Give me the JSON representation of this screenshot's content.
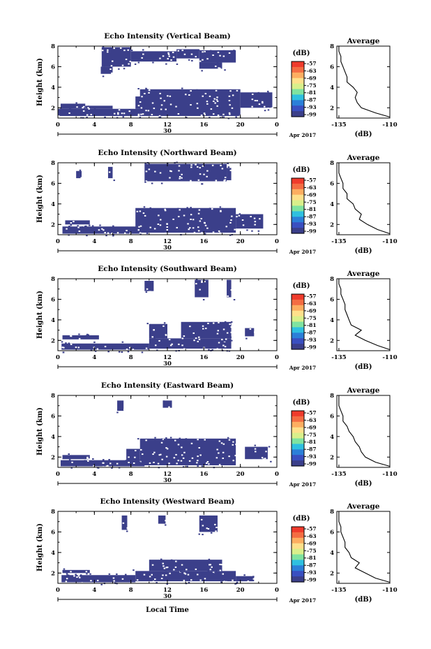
{
  "colorbar": {
    "unit": "(dB)",
    "ticks": [
      "-57",
      "-63",
      "-69",
      "-75",
      "-81",
      "-87",
      "-93",
      "-99"
    ],
    "colors": [
      "#ef3b2c",
      "#f46d43",
      "#fdae61",
      "#fee08b",
      "#d9ef8b",
      "#7fe3a0",
      "#2fc0e0",
      "#2c7fd8",
      "#3a4fc0",
      "#3b3f8a"
    ]
  },
  "shared": {
    "height_axis_label": "Height (km)",
    "date_label": "Apr 2017",
    "day_label": "30",
    "xlabel": "Local Time",
    "profile_title": "Average",
    "profile_xlabel": "(dB)",
    "echo_color": "#3b3f8a"
  },
  "chart_data": [
    {
      "type": "heatmap",
      "title": "Echo Intensity (Vertical Beam)",
      "x_label": "Local Time",
      "y_label": "Height (km)",
      "x_ticks": [
        "0",
        "4",
        "8",
        "12",
        "16",
        "20",
        "0"
      ],
      "y_ticks": [
        "2",
        "4",
        "6",
        "8"
      ],
      "xlim": [
        0,
        24
      ],
      "ylim": [
        1,
        8
      ],
      "echo_regions_hours_km": [
        {
          "x": [
            0.0,
            9.5
          ],
          "y": [
            1.2,
            1.9
          ]
        },
        {
          "x": [
            0.3,
            3.0
          ],
          "y": [
            1.9,
            2.4
          ]
        },
        {
          "x": [
            3.0,
            6.0
          ],
          "y": [
            1.9,
            2.2
          ]
        },
        {
          "x": [
            9.0,
            20.0
          ],
          "y": [
            1.2,
            3.8
          ]
        },
        {
          "x": [
            20.0,
            23.5
          ],
          "y": [
            2.0,
            3.5
          ]
        },
        {
          "x": [
            8.5,
            9.5
          ],
          "y": [
            1.9,
            3.1
          ]
        },
        {
          "x": [
            4.8,
            8.0
          ],
          "y": [
            6.0,
            7.9
          ]
        },
        {
          "x": [
            8.0,
            13.0
          ],
          "y": [
            6.5,
            7.5
          ]
        },
        {
          "x": [
            13.0,
            15.5
          ],
          "y": [
            6.8,
            7.7
          ]
        },
        {
          "x": [
            15.5,
            19.5
          ],
          "y": [
            6.4,
            7.6
          ]
        },
        {
          "x": [
            4.7,
            6.0
          ],
          "y": [
            5.3,
            6.0
          ]
        },
        {
          "x": [
            15.5,
            18.0
          ],
          "y": [
            5.8,
            6.4
          ]
        }
      ],
      "profile": {
        "xlim": [
          -136,
          -110
        ],
        "x_ticks": [
          "-135",
          "-110"
        ],
        "y_ticks": [
          "2",
          "4",
          "6",
          "8"
        ],
        "heights_km": [
          1.1,
          1.5,
          2.0,
          2.5,
          3.0,
          3.5,
          4.0,
          4.5,
          5.0,
          5.5,
          6.0,
          6.5,
          7.0,
          7.5,
          8.0
        ],
        "values_db": [
          -110,
          -117,
          -124,
          -126,
          -127,
          -126,
          -128,
          -131,
          -131,
          -132,
          -133,
          -134,
          -134,
          -135,
          -135
        ]
      }
    },
    {
      "type": "heatmap",
      "title": "Echo Intensity (Northward Beam)",
      "x_label": "Local Time",
      "y_label": "Height (km)",
      "x_ticks": [
        "0",
        "4",
        "8",
        "12",
        "16",
        "20",
        "0"
      ],
      "y_ticks": [
        "2",
        "4",
        "6",
        "8"
      ],
      "xlim": [
        0,
        24
      ],
      "ylim": [
        1,
        8
      ],
      "echo_regions_hours_km": [
        {
          "x": [
            0.5,
            9.0
          ],
          "y": [
            1.1,
            1.8
          ]
        },
        {
          "x": [
            0.8,
            3.5
          ],
          "y": [
            2.0,
            2.4
          ]
        },
        {
          "x": [
            8.5,
            19.5
          ],
          "y": [
            1.2,
            3.6
          ]
        },
        {
          "x": [
            19.5,
            22.5
          ],
          "y": [
            1.6,
            3.0
          ]
        },
        {
          "x": [
            9.5,
            18.5
          ],
          "y": [
            6.2,
            7.9
          ]
        },
        {
          "x": [
            18.5,
            19.0
          ],
          "y": [
            6.3,
            7.5
          ]
        },
        {
          "x": [
            5.5,
            6.0
          ],
          "y": [
            6.5,
            7.6
          ]
        },
        {
          "x": [
            2.0,
            2.6
          ],
          "y": [
            6.5,
            7.2
          ]
        }
      ],
      "profile": {
        "xlim": [
          -136,
          -110
        ],
        "x_ticks": [
          "-135",
          "-110"
        ],
        "y_ticks": [
          "2",
          "4",
          "6",
          "8"
        ],
        "heights_km": [
          1.1,
          1.5,
          2.0,
          2.5,
          3.0,
          3.5,
          4.0,
          4.5,
          5.0,
          5.5,
          6.0,
          6.5,
          7.0,
          7.5,
          8.0
        ],
        "values_db": [
          -110,
          -116,
          -121,
          -125,
          -124,
          -127,
          -128,
          -131,
          -131,
          -133,
          -133,
          -134,
          -135,
          -135,
          -135
        ]
      }
    },
    {
      "type": "heatmap",
      "title": "Echo Intensity (Southward Beam)",
      "x_label": "Local Time",
      "y_label": "Height (km)",
      "x_ticks": [
        "0",
        "4",
        "8",
        "12",
        "16",
        "20",
        "0"
      ],
      "y_ticks": [
        "2",
        "4",
        "6",
        "8"
      ],
      "xlim": [
        0,
        24
      ],
      "ylim": [
        1,
        8
      ],
      "echo_regions_hours_km": [
        {
          "x": [
            0.4,
            10.0
          ],
          "y": [
            1.1,
            1.7
          ]
        },
        {
          "x": [
            0.5,
            4.5
          ],
          "y": [
            2.1,
            2.5
          ]
        },
        {
          "x": [
            10.0,
            19.0
          ],
          "y": [
            1.2,
            2.2
          ]
        },
        {
          "x": [
            10.0,
            12.0
          ],
          "y": [
            2.2,
            3.6
          ]
        },
        {
          "x": [
            13.5,
            19.0
          ],
          "y": [
            2.2,
            3.8
          ]
        },
        {
          "x": [
            15.0,
            16.5
          ],
          "y": [
            6.2,
            7.9
          ]
        },
        {
          "x": [
            18.5,
            19.0
          ],
          "y": [
            6.2,
            7.9
          ]
        },
        {
          "x": [
            9.5,
            10.5
          ],
          "y": [
            6.8,
            7.8
          ]
        },
        {
          "x": [
            20.5,
            21.5
          ],
          "y": [
            2.4,
            3.2
          ]
        }
      ],
      "profile": {
        "xlim": [
          -136,
          -110
        ],
        "x_ticks": [
          "-135",
          "-110"
        ],
        "y_ticks": [
          "2",
          "4",
          "6",
          "8"
        ],
        "heights_km": [
          1.1,
          1.5,
          2.0,
          2.5,
          3.0,
          3.5,
          4.0,
          4.5,
          5.0,
          5.5,
          6.0,
          6.5,
          7.0,
          7.5,
          8.0
        ],
        "values_db": [
          -110,
          -116,
          -122,
          -127,
          -124,
          -129,
          -130,
          -131,
          -132,
          -132,
          -133,
          -134,
          -134,
          -135,
          -135
        ]
      }
    },
    {
      "type": "heatmap",
      "title": "Echo Intensity (Eastward Beam)",
      "x_label": "Local Time",
      "y_label": "Height (km)",
      "x_ticks": [
        "0",
        "4",
        "8",
        "12",
        "16",
        "20",
        "0"
      ],
      "y_ticks": [
        "2",
        "4",
        "6",
        "8"
      ],
      "xlim": [
        0,
        24
      ],
      "ylim": [
        1,
        8
      ],
      "echo_regions_hours_km": [
        {
          "x": [
            0.3,
            9.5
          ],
          "y": [
            1.1,
            1.7
          ]
        },
        {
          "x": [
            0.5,
            3.5
          ],
          "y": [
            1.8,
            2.2
          ]
        },
        {
          "x": [
            9.0,
            19.5
          ],
          "y": [
            1.2,
            3.8
          ]
        },
        {
          "x": [
            7.5,
            9.0
          ],
          "y": [
            1.6,
            2.8
          ]
        },
        {
          "x": [
            20.5,
            23.0
          ],
          "y": [
            1.8,
            3.0
          ]
        },
        {
          "x": [
            11.5,
            12.5
          ],
          "y": [
            6.8,
            7.5
          ]
        },
        {
          "x": [
            6.5,
            7.2
          ],
          "y": [
            6.5,
            7.5
          ]
        }
      ],
      "profile": {
        "xlim": [
          -136,
          -110
        ],
        "x_ticks": [
          "-135",
          "-110"
        ],
        "y_ticks": [
          "2",
          "4",
          "6",
          "8"
        ],
        "heights_km": [
          1.1,
          1.5,
          2.0,
          2.5,
          3.0,
          3.5,
          4.0,
          4.5,
          5.0,
          5.5,
          6.0,
          6.5,
          7.0,
          7.5,
          8.0
        ],
        "values_db": [
          -110,
          -117,
          -122,
          -124,
          -125,
          -127,
          -128,
          -130,
          -131,
          -133,
          -133,
          -134,
          -135,
          -135,
          -135
        ]
      }
    },
    {
      "type": "heatmap",
      "title": "Echo Intensity (Westward Beam)",
      "x_label": "Local Time",
      "y_label": "Height (km)",
      "x_ticks": [
        "0",
        "4",
        "8",
        "12",
        "16",
        "20",
        "0"
      ],
      "y_ticks": [
        "2",
        "4",
        "6",
        "8"
      ],
      "xlim": [
        0,
        24
      ],
      "ylim": [
        1,
        8
      ],
      "echo_regions_hours_km": [
        {
          "x": [
            0.4,
            8.5
          ],
          "y": [
            1.1,
            1.8
          ]
        },
        {
          "x": [
            0.5,
            3.5
          ],
          "y": [
            2.0,
            2.3
          ]
        },
        {
          "x": [
            8.5,
            19.5
          ],
          "y": [
            1.2,
            2.2
          ]
        },
        {
          "x": [
            10.0,
            18.0
          ],
          "y": [
            2.2,
            3.3
          ]
        },
        {
          "x": [
            19.5,
            21.5
          ],
          "y": [
            1.2,
            1.7
          ]
        },
        {
          "x": [
            15.5,
            17.5
          ],
          "y": [
            6.0,
            7.6
          ]
        },
        {
          "x": [
            7.0,
            7.6
          ],
          "y": [
            6.2,
            7.6
          ]
        },
        {
          "x": [
            11.0,
            11.8
          ],
          "y": [
            6.8,
            7.6
          ]
        }
      ],
      "profile": {
        "xlim": [
          -136,
          -110
        ],
        "x_ticks": [
          "-135",
          "-110"
        ],
        "y_ticks": [
          "2",
          "4",
          "6",
          "8"
        ],
        "heights_km": [
          1.1,
          1.5,
          2.0,
          2.5,
          3.0,
          3.5,
          4.0,
          4.5,
          5.0,
          5.5,
          6.0,
          6.5,
          7.0,
          7.5,
          8.0
        ],
        "values_db": [
          -110,
          -117,
          -122,
          -127,
          -125,
          -129,
          -130,
          -132,
          -132,
          -133,
          -134,
          -134,
          -135,
          -135,
          -135
        ]
      }
    }
  ]
}
